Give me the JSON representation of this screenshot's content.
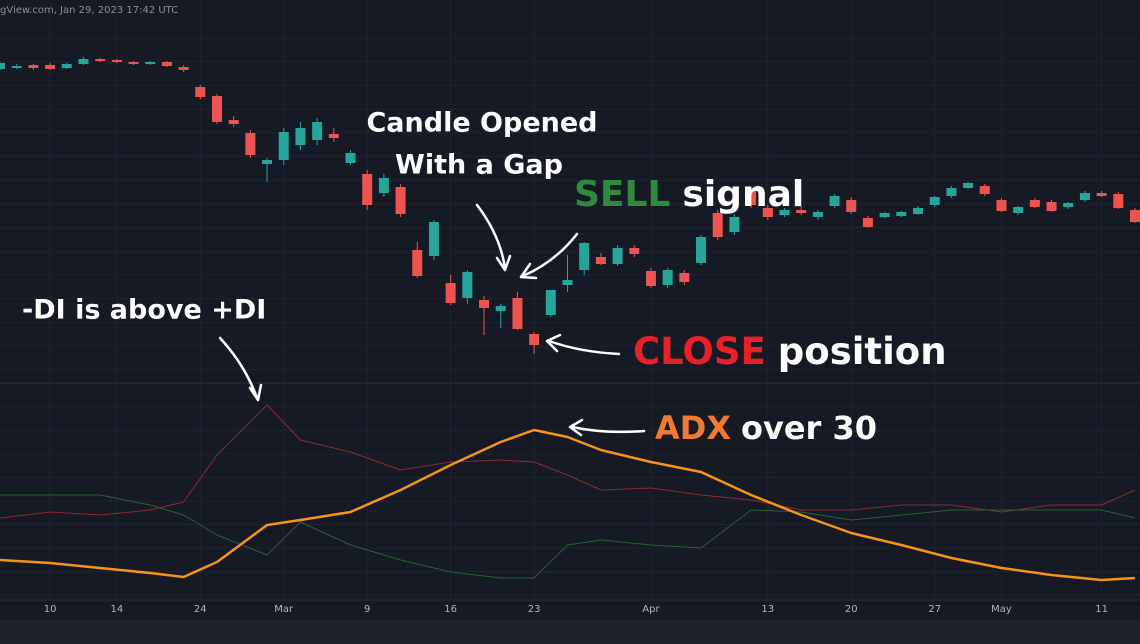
{
  "header": {
    "source": "gView.com, Jan 29, 2023 17:42 UTC"
  },
  "chart_data": {
    "type": "candlestick",
    "xlim": [
      0,
      68.3
    ],
    "ylim": [
      20,
      400
    ],
    "grid": true,
    "up_color": "#26a69a",
    "down_color": "#ef5350",
    "xticks": [
      {
        "value": 3,
        "label": "10"
      },
      {
        "value": 7,
        "label": "14"
      },
      {
        "value": 12,
        "label": "24"
      },
      {
        "value": 17,
        "label": "Mar"
      },
      {
        "value": 22,
        "label": "9"
      },
      {
        "value": 27,
        "label": "16"
      },
      {
        "value": 32,
        "label": "23"
      },
      {
        "value": 39,
        "label": "Apr"
      },
      {
        "value": 46,
        "label": "13"
      },
      {
        "value": 51,
        "label": "20"
      },
      {
        "value": 56,
        "label": "27"
      },
      {
        "value": 60,
        "label": "May"
      },
      {
        "value": 66,
        "label": "11"
      }
    ],
    "open": [
      331,
      332,
      335,
      335,
      332,
      336,
      341,
      340,
      338,
      336,
      338,
      333,
      313,
      304,
      280,
      267,
      236,
      240,
      255,
      260,
      266,
      237,
      226,
      207,
      213,
      150,
      144,
      117,
      102,
      100,
      89,
      102,
      66,
      85,
      115,
      130,
      143,
      136,
      152,
      129,
      115,
      127,
      137,
      187,
      168,
      210,
      192,
      185,
      190,
      183,
      194,
      200,
      182,
      183,
      184,
      186,
      195,
      204,
      212,
      214,
      200,
      187,
      200,
      198,
      193,
      200,
      207,
      206,
      190
    ],
    "high": [
      338,
      336,
      336,
      337,
      337,
      343,
      342,
      341,
      339,
      339,
      339,
      335,
      315,
      306,
      284,
      270,
      242,
      272,
      278,
      282,
      272,
      250,
      230,
      226,
      216,
      158,
      180,
      125,
      130,
      104,
      96,
      108,
      68,
      110,
      145,
      158,
      147,
      155,
      155,
      132,
      132,
      130,
      165,
      190,
      186,
      212,
      195,
      192,
      194,
      190,
      206,
      203,
      184,
      188,
      189,
      194,
      204,
      214,
      218,
      216,
      202,
      194,
      202,
      200,
      198,
      209,
      209,
      208,
      192
    ],
    "low": [
      330,
      331,
      330,
      330,
      331,
      335,
      338,
      337,
      335,
      335,
      333,
      328,
      301,
      276,
      273,
      242,
      218,
      235,
      250,
      255,
      258,
      235,
      190,
      203,
      183,
      122,
      140,
      95,
      96,
      65,
      72,
      70,
      46,
      83,
      108,
      125,
      135,
      134,
      143,
      112,
      112,
      115,
      135,
      160,
      165,
      192,
      180,
      183,
      185,
      180,
      192,
      186,
      172,
      182,
      183,
      185,
      193,
      202,
      211,
      204,
      188,
      185,
      192,
      188,
      191,
      198,
      203,
      191,
      177
    ],
    "close": [
      337,
      334,
      332,
      331,
      336,
      341,
      339,
      338,
      336,
      338,
      334,
      330,
      303,
      278,
      276,
      245,
      240,
      268,
      272,
      278,
      262,
      247,
      195,
      222,
      186,
      124,
      178,
      97,
      128,
      92,
      94,
      71,
      55,
      110,
      120,
      157,
      136,
      152,
      146,
      114,
      130,
      118,
      163,
      163,
      183,
      195,
      183,
      190,
      187,
      188,
      204,
      188,
      173,
      187,
      188,
      192,
      203,
      212,
      217,
      206,
      189,
      193,
      193,
      189,
      197,
      207,
      204,
      192,
      178
    ],
    "indicator": {
      "ylim": [
        0,
        43
      ],
      "x": [
        0,
        3,
        6,
        9,
        11,
        13,
        16,
        18,
        21,
        24,
        27,
        30,
        32,
        34,
        36,
        39,
        42,
        45,
        48,
        51,
        54,
        57,
        60,
        63,
        66,
        68
      ],
      "series": [
        {
          "color": "#8b2b30",
          "values": [
            16.4,
            17.6,
            17,
            18,
            19.6,
            29,
            39,
            32,
            29.6,
            26,
            27.6,
            28,
            27.6,
            25,
            22,
            22.4,
            21,
            20,
            18,
            18,
            19,
            19,
            17.6,
            19,
            19,
            22
          ]
        },
        {
          "color": "#2b5e36",
          "values": [
            21,
            21,
            21,
            19,
            17,
            13,
            9,
            15.6,
            11,
            8,
            5.6,
            4.4,
            4.4,
            11,
            12,
            11,
            10.4,
            18,
            17.6,
            16,
            17,
            18,
            18,
            18,
            18,
            16.4
          ]
        },
        {
          "color": "#f7931a",
          "values": [
            8,
            7.4,
            6.4,
            5.4,
            4.6,
            7.6,
            15,
            16,
            17.6,
            22,
            27,
            31.6,
            34,
            32.6,
            30,
            27.6,
            25.6,
            21,
            17,
            13.4,
            11,
            8.4,
            6.4,
            5,
            4,
            4.4
          ]
        }
      ]
    },
    "annotations": {
      "gap": [
        "Candle Opened",
        "With a Gap"
      ],
      "sell": {
        "word": "SELL",
        "rest": "signal",
        "color": "#2e8b3e"
      },
      "close": {
        "word": "CLOSE",
        "rest": "position",
        "color": "#e8202a"
      },
      "adx": {
        "word": "ADX",
        "rest": "over 30",
        "color": "#ef7a30"
      },
      "di": "-DI is above +DI"
    }
  }
}
